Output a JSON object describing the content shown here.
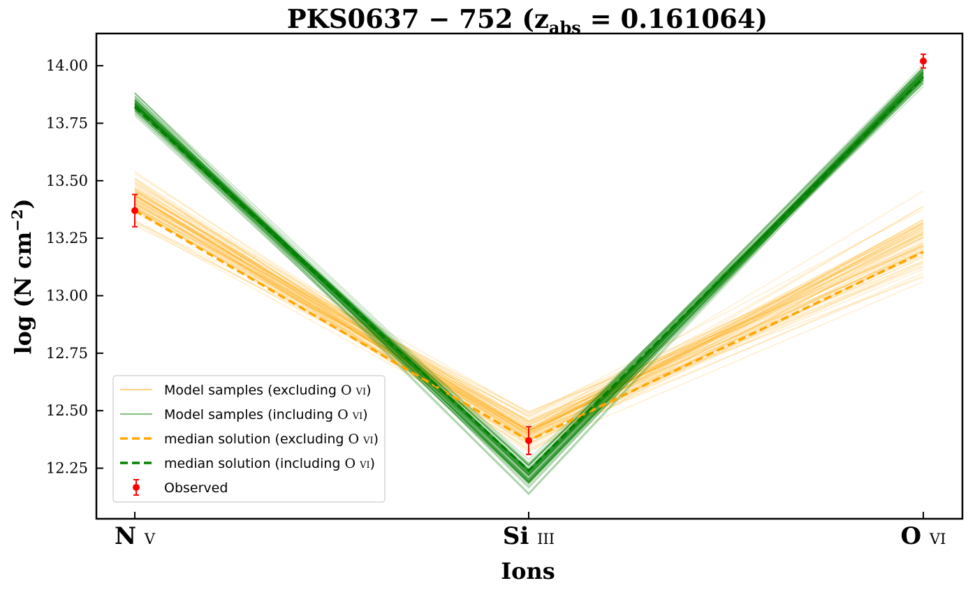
{
  "chart_data": {
    "type": "line",
    "title": "PKS0637 − 752 (z",
    "title_sub": "abs",
    "title_tail": " = 0.161064)",
    "xlabel": "Ions",
    "ylabel": "log (N cm",
    "ylabel_sup": "−2",
    "ylabel_tail": ")",
    "categories": [
      "N v",
      "Si iii",
      "O vi"
    ],
    "category_labels": [
      {
        "main": "N",
        "ion": "v"
      },
      {
        "main": "Si",
        "ion": "iii"
      },
      {
        "main": "O",
        "ion": "vi"
      }
    ],
    "ylim": [
      12.03,
      14.14
    ],
    "yticks": [
      "12.25",
      "12.50",
      "12.75",
      "13.00",
      "13.25",
      "13.50",
      "13.75",
      "14.00"
    ],
    "grid": false,
    "legend_position": "lower-left",
    "series": [
      {
        "name": "median solution (excluding O vi)",
        "values": [
          13.37,
          12.37,
          13.19
        ],
        "color": "#ffa500",
        "style": "dashed"
      },
      {
        "name": "median solution (including O vi)",
        "values": [
          13.82,
          12.24,
          13.95
        ],
        "color": "#008000",
        "style": "dashed"
      }
    ],
    "model_samples_excluding": {
      "name": "Model samples (excluding O vi)",
      "color": "#ffa500",
      "approx_ranges": {
        "N v": [
          13.27,
          13.57
        ],
        "Si iii": [
          12.28,
          12.53
        ],
        "O vi": [
          13.0,
          13.48
        ]
      }
    },
    "model_samples_including": {
      "name": "Model samples (including O vi)",
      "color": "#008000",
      "approx_ranges": {
        "N v": [
          13.78,
          13.9
        ],
        "Si iii": [
          12.12,
          12.31
        ],
        "O vi": [
          13.9,
          14.02
        ]
      }
    },
    "observed": {
      "name": "Observed",
      "color": "#ff0000",
      "values": [
        13.37,
        12.37,
        14.02
      ],
      "errors": [
        0.07,
        0.06,
        0.03
      ]
    },
    "legend": [
      {
        "label_pre": "Model samples (excluding ",
        "ion": "O vi",
        "label_post": ")",
        "kind": "thin",
        "color": "#ffa500"
      },
      {
        "label_pre": "Model samples (including ",
        "ion": "O vi",
        "label_post": ")",
        "kind": "thin",
        "color": "#008000"
      },
      {
        "label_pre": "median solution (excluding ",
        "ion": "O vi",
        "label_post": ")",
        "kind": "dashed",
        "color": "#ffa500"
      },
      {
        "label_pre": "median solution (including ",
        "ion": "O vi",
        "label_post": ")",
        "kind": "dashed",
        "color": "#008000"
      },
      {
        "label_pre": "Observed",
        "ion": "",
        "label_post": "",
        "kind": "errorbar",
        "color": "#ff0000"
      }
    ]
  }
}
